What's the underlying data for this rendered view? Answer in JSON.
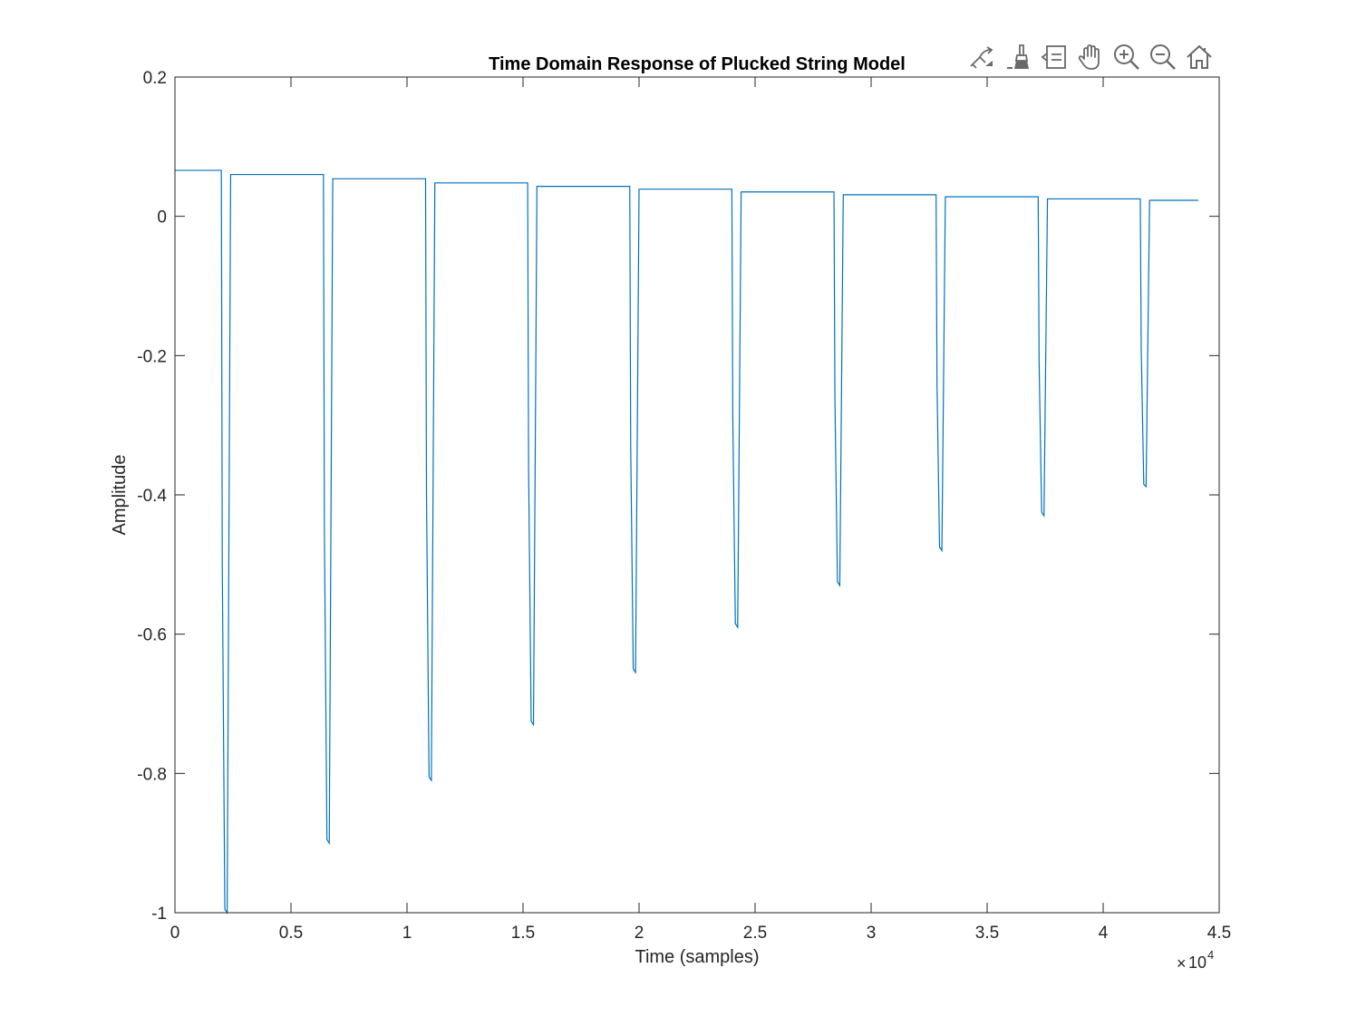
{
  "toolbar": {
    "tools": [
      {
        "name": "edit-plot-icon"
      },
      {
        "name": "brush-icon"
      },
      {
        "name": "data-tips-icon"
      },
      {
        "name": "pan-hand-icon"
      },
      {
        "name": "zoom-in-icon"
      },
      {
        "name": "zoom-out-icon"
      },
      {
        "name": "home-icon"
      }
    ]
  },
  "chart_data": {
    "type": "line",
    "title": "Time Domain Response of Plucked String Model",
    "xlabel": "Time (samples)",
    "ylabel": "Amplitude",
    "xlim": [
      0,
      45000
    ],
    "ylim": [
      -1,
      0.2
    ],
    "x_exponent_label": "10",
    "x_exponent_power": "4",
    "xticks": [
      0,
      5000,
      10000,
      15000,
      20000,
      25000,
      30000,
      35000,
      40000,
      45000
    ],
    "xtick_labels": [
      "0",
      "0.5",
      "1",
      "1.5",
      "2",
      "2.5",
      "3",
      "3.5",
      "4",
      "4.5"
    ],
    "yticks": [
      -1,
      -0.8,
      -0.6,
      -0.4,
      -0.2,
      0,
      0.2
    ],
    "ytick_labels": [
      "-1",
      "-0.8",
      "-0.6",
      "-0.4",
      "-0.2",
      "0",
      "0.2"
    ],
    "grid": false,
    "line_color": "#0072BD",
    "series": [
      {
        "x": [
          0,
          2000,
          2040,
          2150,
          2250,
          2400,
          6400,
          6440,
          6550,
          6650,
          6800,
          10800,
          10840,
          10950,
          11050,
          11200,
          15200,
          15240,
          15350,
          15450,
          15600,
          19600,
          19640,
          19750,
          19850,
          20000,
          24000,
          24040,
          24150,
          24250,
          24400,
          28400,
          28440,
          28550,
          28650,
          28800,
          32800,
          32840,
          32950,
          33050,
          33200,
          37200,
          37240,
          37350,
          37450,
          37600,
          41600,
          41640,
          41750,
          41850,
          42000,
          44100
        ],
        "y": [
          0.066,
          0.066,
          -0.5,
          -0.995,
          -1.0,
          0.06,
          0.06,
          -0.45,
          -0.895,
          -0.9,
          0.054,
          0.054,
          -0.4,
          -0.805,
          -0.81,
          0.048,
          0.048,
          -0.36,
          -0.725,
          -0.73,
          0.043,
          0.043,
          -0.33,
          -0.65,
          -0.655,
          0.039,
          0.039,
          -0.29,
          -0.585,
          -0.59,
          0.035,
          0.035,
          -0.26,
          -0.525,
          -0.53,
          0.031,
          0.031,
          -0.24,
          -0.475,
          -0.48,
          0.028,
          0.028,
          -0.21,
          -0.425,
          -0.43,
          0.025,
          0.025,
          -0.19,
          -0.385,
          -0.388,
          0.023,
          0.023
        ]
      }
    ]
  }
}
